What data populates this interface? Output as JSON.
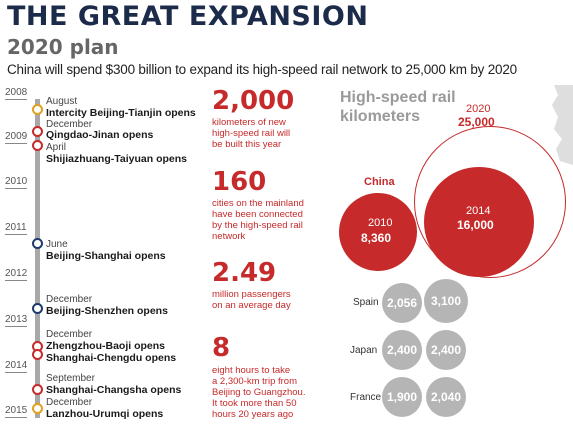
{
  "header": {
    "title": "THE GREAT EXPANSION",
    "subtitle": "2020 plan",
    "description": "China will spend $300 billion to expand its high-speed rail network to 25,000 km by 2020"
  },
  "timeline": {
    "years": [
      "2008",
      "2009",
      "2010",
      "2011",
      "2012",
      "2013",
      "2014",
      "2015"
    ],
    "events": [
      {
        "month": "August",
        "name": "Intercity Beijing-Tianjin opens"
      },
      {
        "month": "December",
        "name": "Qingdao-Jinan opens"
      },
      {
        "month": "April",
        "name": "Shijiazhuang-Taiyuan opens"
      },
      {
        "month": "June",
        "name": "Beijing-Shanghai opens"
      },
      {
        "month": "December",
        "name": "Beijing-Shenzhen opens"
      },
      {
        "month": "December",
        "name": "Zhengzhou-Baoji opens"
      },
      {
        "month": "",
        "name": "Shanghai-Chengdu opens"
      },
      {
        "month": "September",
        "name": "Shanghai-Changsha opens"
      },
      {
        "month": "December",
        "name": "Lanzhou-Urumqi opens"
      }
    ]
  },
  "stats": [
    {
      "value": "2,000",
      "text": [
        "kilometers of new",
        "high-speed rail will",
        "be built this year"
      ]
    },
    {
      "value": "160",
      "text": [
        "cities on the mainland",
        "have been connected",
        "by the high-speed rail",
        "network"
      ]
    },
    {
      "value": "2.49",
      "text": [
        "million passengers",
        "on an average day"
      ]
    },
    {
      "value": "8",
      "text": [
        "eight hours to take",
        "a 2,300-km trip from",
        "Beijing to Guangzhou.",
        "It took more than 50",
        "hours 20 years ago"
      ]
    }
  ],
  "bubbles": {
    "title_line1": "High-speed rail",
    "title_line2": "kilometers",
    "china_label": "China",
    "china": [
      {
        "year": "2010",
        "km": "8,360",
        "value": 8360
      },
      {
        "year": "2014",
        "km": "16,000",
        "value": 16000
      },
      {
        "year": "2020",
        "km": "25,000",
        "value": 25000
      }
    ],
    "others": [
      {
        "country": "Spain",
        "values": [
          "2,056",
          "3,100"
        ]
      },
      {
        "country": "Japan",
        "values": [
          "2,400",
          "2,400"
        ]
      },
      {
        "country": "France",
        "values": [
          "1,900",
          "2,040"
        ]
      }
    ]
  },
  "colors": {
    "navy": "#1c2b4a",
    "red": "#c62a2a",
    "gray": "#b5b5b5",
    "gold": "#e0a020"
  }
}
